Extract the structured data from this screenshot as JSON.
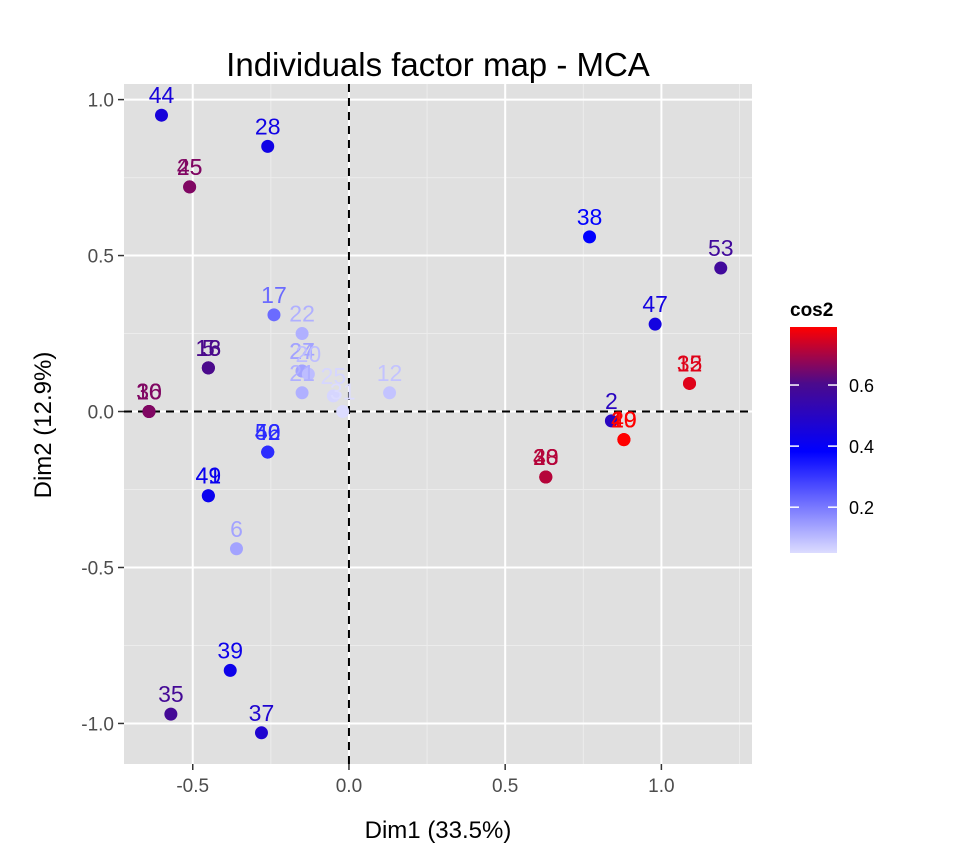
{
  "chart_data": {
    "type": "scatter",
    "title": "Individuals factor map - MCA",
    "xlabel": "Dim1 (33.5%)",
    "ylabel": "Dim2 (12.9%)",
    "xlim": [
      -0.72,
      1.29
    ],
    "ylim": [
      -1.13,
      1.05
    ],
    "xticks": [
      -0.5,
      0.0,
      0.5,
      1.0
    ],
    "xtick_labels": [
      "-0.5",
      "0.0",
      "0.5",
      "1.0"
    ],
    "yticks": [
      -1.0,
      -0.5,
      0.0,
      0.5,
      1.0
    ],
    "ytick_labels": [
      "-1.0",
      "-0.5",
      "0.0",
      "0.5",
      "1.0"
    ],
    "grid": true,
    "reference_lines": {
      "x": 0,
      "y": 0,
      "style": "dashed"
    },
    "legend": {
      "title": "cos2",
      "position": "right",
      "range": [
        0.05,
        0.79
      ],
      "ticks": [
        0.2,
        0.4,
        0.6
      ],
      "tick_labels": [
        "0.2",
        "0.4",
        "0.6"
      ],
      "colors": {
        "low": "#ffffff",
        "mid": "#0000ff",
        "high": "#ff0000"
      }
    },
    "colors": {
      "panel": "#e0e0e0",
      "grid_major": "#ffffff",
      "grid_minor": "#ececec"
    },
    "points": [
      {
        "label": "44",
        "x": -0.6,
        "y": 0.95,
        "cos2": 0.47
      },
      {
        "label": "28",
        "x": -0.26,
        "y": 0.85,
        "cos2": 0.45
      },
      {
        "label": "45",
        "x": -0.51,
        "y": 0.72,
        "cos2": 0.67
      },
      {
        "label": "25",
        "x": -0.51,
        "y": 0.72,
        "cos2": 0.67
      },
      {
        "label": "38",
        "x": 0.77,
        "y": 0.56,
        "cos2": 0.4
      },
      {
        "label": "53",
        "x": 1.19,
        "y": 0.46,
        "cos2": 0.59
      },
      {
        "label": "47",
        "x": 0.98,
        "y": 0.28,
        "cos2": 0.46
      },
      {
        "label": "17",
        "x": -0.24,
        "y": 0.31,
        "cos2": 0.23
      },
      {
        "label": "22",
        "x": -0.15,
        "y": 0.25,
        "cos2": 0.12
      },
      {
        "label": "5",
        "x": -0.45,
        "y": 0.14,
        "cos2": 0.62
      },
      {
        "label": "13",
        "x": -0.45,
        "y": 0.14,
        "cos2": 0.62
      },
      {
        "label": "16",
        "x": -0.45,
        "y": 0.14,
        "cos2": 0.62
      },
      {
        "label": "24",
        "x": -0.15,
        "y": 0.13,
        "cos2": 0.14
      },
      {
        "label": "27",
        "x": -0.15,
        "y": 0.13,
        "cos2": 0.14
      },
      {
        "label": "20",
        "x": -0.13,
        "y": 0.12,
        "cos2": 0.1
      },
      {
        "label": "21",
        "x": -0.15,
        "y": 0.06,
        "cos2": 0.12
      },
      {
        "label": "25",
        "x": -0.05,
        "y": 0.05,
        "cos2": 0.06
      },
      {
        "label": "31",
        "x": -0.02,
        "y": 0.0,
        "cos2": 0.05
      },
      {
        "label": "12",
        "x": 0.13,
        "y": 0.06,
        "cos2": 0.09
      },
      {
        "label": "32",
        "x": 1.09,
        "y": 0.09,
        "cos2": 0.76
      },
      {
        "label": "15",
        "x": 1.09,
        "y": 0.09,
        "cos2": 0.76
      },
      {
        "label": "30",
        "x": -0.64,
        "y": 0.0,
        "cos2": 0.67
      },
      {
        "label": "36",
        "x": -0.64,
        "y": 0.0,
        "cos2": 0.67
      },
      {
        "label": "10",
        "x": -0.64,
        "y": 0.0,
        "cos2": 0.67
      },
      {
        "label": "2",
        "x": 0.84,
        "y": -0.03,
        "cos2": 0.52
      },
      {
        "label": "29",
        "x": 0.88,
        "y": -0.09,
        "cos2": 0.79
      },
      {
        "label": "19",
        "x": 0.88,
        "y": -0.09,
        "cos2": 0.79
      },
      {
        "label": "40",
        "x": 0.88,
        "y": -0.09,
        "cos2": 0.79
      },
      {
        "label": "46",
        "x": -0.26,
        "y": -0.13,
        "cos2": 0.33
      },
      {
        "label": "50",
        "x": -0.26,
        "y": -0.13,
        "cos2": 0.33
      },
      {
        "label": "42",
        "x": -0.26,
        "y": -0.13,
        "cos2": 0.33
      },
      {
        "label": "20",
        "x": 0.63,
        "y": -0.21,
        "cos2": 0.72
      },
      {
        "label": "33",
        "x": 0.63,
        "y": -0.21,
        "cos2": 0.72
      },
      {
        "label": "48",
        "x": 0.63,
        "y": -0.21,
        "cos2": 0.72
      },
      {
        "label": "49",
        "x": -0.45,
        "y": -0.27,
        "cos2": 0.43
      },
      {
        "label": "41",
        "x": -0.45,
        "y": -0.27,
        "cos2": 0.43
      },
      {
        "label": "6",
        "x": -0.36,
        "y": -0.44,
        "cos2": 0.14
      },
      {
        "label": "39",
        "x": -0.38,
        "y": -0.83,
        "cos2": 0.44
      },
      {
        "label": "35",
        "x": -0.57,
        "y": -0.97,
        "cos2": 0.6
      },
      {
        "label": "37",
        "x": -0.28,
        "y": -1.03,
        "cos2": 0.49
      }
    ]
  }
}
